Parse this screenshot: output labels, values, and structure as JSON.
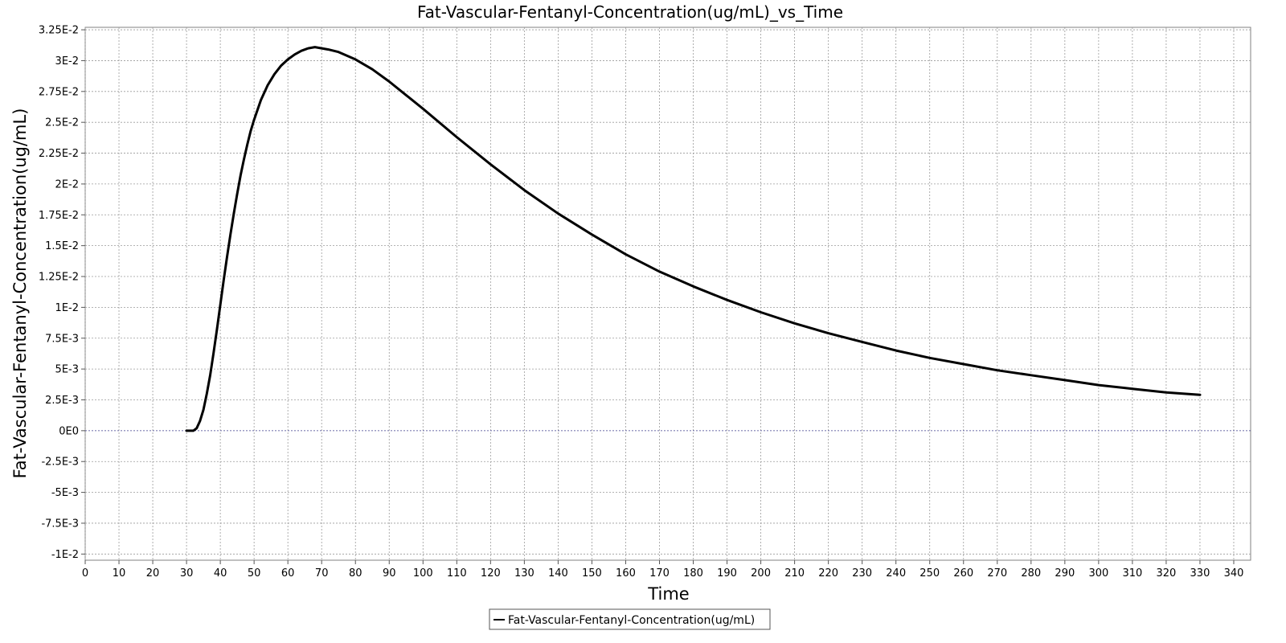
{
  "chart_data": {
    "type": "line",
    "title": "Fat-Vascular-Fentanyl-Concentration(ug/mL)_vs_Time",
    "xlabel": "Time",
    "ylabel": "Fat-Vascular-Fentanyl-Concentration(ug/mL)",
    "xlim": [
      0,
      345
    ],
    "ylim": [
      -0.0105,
      0.0327
    ],
    "x_ticks": [
      0,
      10,
      20,
      30,
      40,
      50,
      60,
      70,
      80,
      90,
      100,
      110,
      120,
      130,
      140,
      150,
      160,
      170,
      180,
      190,
      200,
      210,
      220,
      230,
      240,
      250,
      260,
      270,
      280,
      290,
      300,
      310,
      320,
      330,
      340
    ],
    "x_tick_labels": [
      "0",
      "10",
      "20",
      "30",
      "40",
      "50",
      "60",
      "70",
      "80",
      "90",
      "100",
      "110",
      "120",
      "130",
      "140",
      "150",
      "160",
      "170",
      "180",
      "190",
      "200",
      "210",
      "220",
      "230",
      "240",
      "250",
      "260",
      "270",
      "280",
      "290",
      "300",
      "310",
      "320",
      "330",
      "340"
    ],
    "y_ticks": [
      -0.01,
      -0.0075,
      -0.005,
      -0.0025,
      0,
      0.0025,
      0.005,
      0.0075,
      0.01,
      0.0125,
      0.015,
      0.0175,
      0.02,
      0.0225,
      0.025,
      0.0275,
      0.03,
      0.0325
    ],
    "y_tick_labels": [
      "-1E-2",
      "-7.5E-3",
      "-5E-3",
      "-2.5E-3",
      "0E0",
      "2.5E-3",
      "5E-3",
      "7.5E-3",
      "1E-2",
      "1.25E-2",
      "1.5E-2",
      "1.75E-2",
      "2E-2",
      "2.25E-2",
      "2.5E-2",
      "2.75E-2",
      "3E-2",
      "3.25E-2"
    ],
    "grid": true,
    "legend_position": "bottom-center",
    "series": [
      {
        "name": "Fat-Vascular-Fentanyl-Concentration(ug/mL)",
        "color": "#000000",
        "x": [
          30,
          32,
          33,
          34,
          35,
          36,
          37,
          38,
          39,
          40,
          41,
          42,
          43,
          44,
          45,
          46,
          47,
          48,
          49,
          50,
          52,
          54,
          56,
          58,
          60,
          62,
          64,
          66,
          68,
          70,
          72,
          75,
          80,
          85,
          90,
          95,
          100,
          110,
          120,
          130,
          140,
          150,
          160,
          170,
          180,
          190,
          200,
          210,
          220,
          230,
          240,
          250,
          260,
          270,
          280,
          290,
          300,
          310,
          320,
          330
        ],
        "y": [
          0.0,
          0.0,
          0.0002,
          0.0008,
          0.0017,
          0.003,
          0.0045,
          0.0063,
          0.0082,
          0.0102,
          0.0122,
          0.0141,
          0.0159,
          0.0176,
          0.0192,
          0.0207,
          0.022,
          0.0232,
          0.0243,
          0.0252,
          0.0268,
          0.028,
          0.0289,
          0.0296,
          0.0301,
          0.0305,
          0.0308,
          0.031,
          0.0311,
          0.031,
          0.0309,
          0.0307,
          0.0301,
          0.0293,
          0.0283,
          0.0272,
          0.0261,
          0.0238,
          0.0216,
          0.0195,
          0.0176,
          0.0159,
          0.0143,
          0.0129,
          0.0117,
          0.0106,
          0.0096,
          0.0087,
          0.0079,
          0.0072,
          0.0065,
          0.0059,
          0.0054,
          0.0049,
          0.0045,
          0.0041,
          0.0037,
          0.0034,
          0.0031,
          0.0029
        ]
      }
    ]
  },
  "colors": {
    "background": "#ffffff",
    "plot_border": "#808080",
    "grid": "#9a9a9a",
    "zero_line": "#3a3a8a",
    "series": "#000000"
  }
}
